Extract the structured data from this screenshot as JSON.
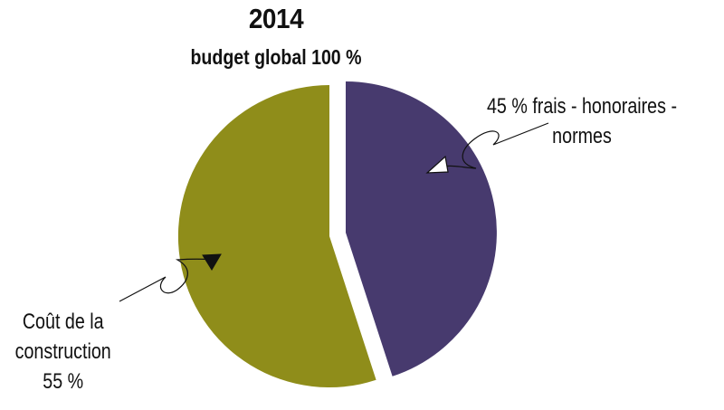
{
  "chart_data": {
    "type": "pie",
    "title": "2014",
    "subtitle": "budget global 100 %",
    "slices": [
      {
        "value": 45,
        "color": "#473a6e",
        "label_lines": [
          "45 % frais - honoraires -",
          "normes"
        ]
      },
      {
        "value": 55,
        "color": "#8f8d1a",
        "label_lines": [
          "Coût de la",
          "construction",
          "55 %"
        ]
      }
    ]
  }
}
